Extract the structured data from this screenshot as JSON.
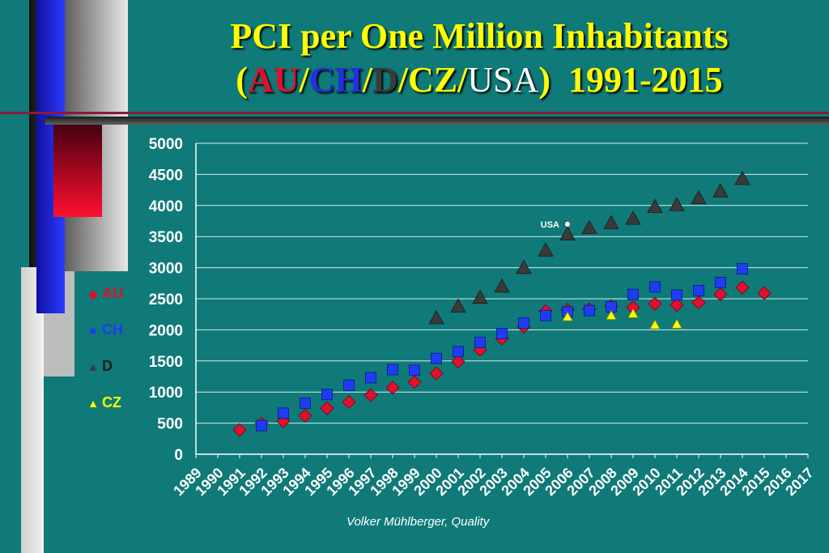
{
  "title": {
    "line1": "PCI per One Million Inhabitants",
    "open": "(",
    "au": "AU",
    "slash1": "/",
    "ch": "CH",
    "slash2": "/",
    "d": "D",
    "slash3": "/CZ/",
    "usa": "USA",
    "close": ")",
    "years": "1991-2015"
  },
  "footer": "Volker Mühlberger, Quality",
  "chart_data": {
    "type": "scatter",
    "title": "PCI per One Million Inhabitants (AU/CH/D/CZ/USA) 1991-2015",
    "xlabel": "",
    "ylabel": "",
    "xlim": [
      1989,
      2017
    ],
    "ylim": [
      0,
      5000
    ],
    "y_ticks": [
      0,
      500,
      1000,
      1500,
      2000,
      2500,
      3000,
      3500,
      4000,
      4500,
      5000
    ],
    "x_ticks": [
      "1989",
      "1990",
      "1991",
      "1992",
      "1993",
      "1994",
      "1995",
      "1996",
      "1997",
      "1998",
      "1999",
      "2000",
      "2001",
      "2002",
      "2003",
      "2004",
      "2005",
      "2006",
      "2007",
      "2008",
      "2009",
      "2010",
      "2011",
      "2012",
      "2013",
      "2014",
      "2015",
      "2016",
      "2017"
    ],
    "grid": "horizontal",
    "legend": "left",
    "series": [
      {
        "name": "AU",
        "marker": "diamond",
        "color": "#e0102f",
        "points": [
          [
            1991,
            390
          ],
          [
            1992,
            490
          ],
          [
            1993,
            530
          ],
          [
            1994,
            620
          ],
          [
            1995,
            740
          ],
          [
            1996,
            840
          ],
          [
            1997,
            950
          ],
          [
            1998,
            1070
          ],
          [
            1999,
            1160
          ],
          [
            2000,
            1300
          ],
          [
            2001,
            1490
          ],
          [
            2002,
            1680
          ],
          [
            2003,
            1860
          ],
          [
            2004,
            2050
          ],
          [
            2005,
            2300
          ],
          [
            2006,
            2320
          ],
          [
            2007,
            2330
          ],
          [
            2008,
            2380
          ],
          [
            2009,
            2360
          ],
          [
            2010,
            2420
          ],
          [
            2011,
            2400
          ],
          [
            2012,
            2440
          ],
          [
            2013,
            2570
          ],
          [
            2014,
            2680
          ],
          [
            2015,
            2590
          ]
        ]
      },
      {
        "name": "CH",
        "marker": "square",
        "color": "#1f3cf5",
        "points": [
          [
            1992,
            460
          ],
          [
            1993,
            660
          ],
          [
            1994,
            820
          ],
          [
            1995,
            960
          ],
          [
            1996,
            1110
          ],
          [
            1997,
            1230
          ],
          [
            1998,
            1360
          ],
          [
            1999,
            1350
          ],
          [
            2000,
            1540
          ],
          [
            2001,
            1650
          ],
          [
            2002,
            1800
          ],
          [
            2003,
            1940
          ],
          [
            2004,
            2110
          ],
          [
            2005,
            2230
          ],
          [
            2006,
            2290
          ],
          [
            2007,
            2310
          ],
          [
            2008,
            2370
          ],
          [
            2009,
            2570
          ],
          [
            2010,
            2690
          ],
          [
            2011,
            2560
          ],
          [
            2012,
            2630
          ],
          [
            2013,
            2760
          ],
          [
            2014,
            2980
          ]
        ]
      },
      {
        "name": "D",
        "marker": "triangle",
        "color": "#3a3a3a",
        "points": [
          [
            2000,
            2190
          ],
          [
            2001,
            2380
          ],
          [
            2002,
            2520
          ],
          [
            2003,
            2700
          ],
          [
            2004,
            3000
          ],
          [
            2005,
            3280
          ],
          [
            2006,
            3540
          ],
          [
            2007,
            3640
          ],
          [
            2008,
            3720
          ],
          [
            2009,
            3790
          ],
          [
            2010,
            3980
          ],
          [
            2011,
            4010
          ],
          [
            2012,
            4120
          ],
          [
            2013,
            4230
          ],
          [
            2014,
            4430
          ]
        ]
      },
      {
        "name": "CZ",
        "marker": "triangle",
        "color": "#ffff00",
        "points": [
          [
            2006,
            2210
          ],
          [
            2008,
            2230
          ],
          [
            2009,
            2260
          ],
          [
            2010,
            2080
          ],
          [
            2011,
            2090
          ]
        ]
      },
      {
        "name": "USA",
        "marker": "circle",
        "color": "#ffffff",
        "points": [
          [
            2006,
            3700
          ]
        ]
      }
    ],
    "annotations": [
      {
        "text": "USA",
        "x": 2006,
        "y": 3700
      }
    ]
  }
}
